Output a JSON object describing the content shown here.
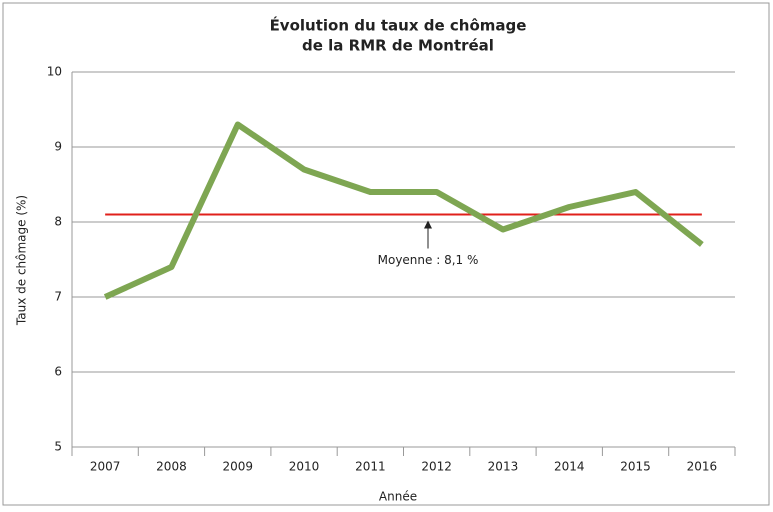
{
  "chart_data": {
    "type": "line",
    "title": [
      "Évolution du taux de chômage",
      "de la RMR de Montréal"
    ],
    "x_label": "Année",
    "y_label": "Taux de chômage (%)",
    "categories": [
      "2007",
      "2008",
      "2009",
      "2010",
      "2011",
      "2012",
      "2013",
      "2014",
      "2015",
      "2016"
    ],
    "series": [
      {
        "color": "#7ea652",
        "values": [
          7.0,
          7.4,
          9.3,
          8.7,
          8.4,
          8.4,
          7.9,
          8.2,
          8.4,
          7.7
        ]
      }
    ],
    "average": {
      "value": 8.1,
      "label": "Moyenne : 8,1 %",
      "color": "#e0201b"
    },
    "ylim": [
      5,
      10
    ],
    "yticks": [
      5,
      6,
      7,
      8,
      9,
      10
    ],
    "grid": true
  }
}
